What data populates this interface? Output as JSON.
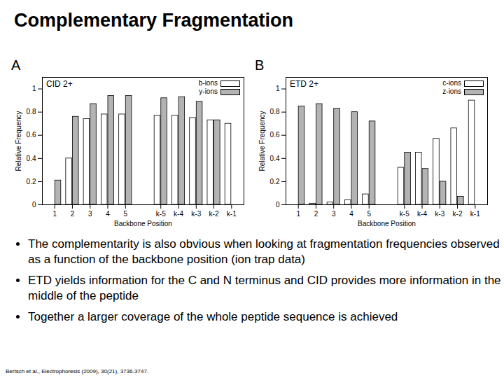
{
  "title": "Complementary Fragmentation",
  "chart_data": [
    {
      "type": "bar",
      "panel": "A",
      "title": "CID 2+",
      "x_label": "Backbone Position",
      "y_label": "Relative Frequency",
      "categories": [
        "1",
        "2",
        "3",
        "4",
        "5",
        null,
        "k-5",
        "k-4",
        "k-3",
        "k-2",
        "k-1"
      ],
      "series": [
        {
          "name": "b-ions",
          "color": "#ffffff",
          "values": [
            null,
            0.4,
            0.74,
            0.78,
            0.78,
            null,
            0.77,
            0.77,
            0.75,
            0.73,
            0.7
          ]
        },
        {
          "name": "y-ions",
          "color": "#b3b3b3",
          "values": [
            0.21,
            0.76,
            0.87,
            0.94,
            0.94,
            null,
            0.92,
            0.93,
            0.89,
            0.73,
            null
          ]
        }
      ],
      "ylim": [
        0,
        1.1
      ],
      "yticks": [
        0,
        0.2,
        0.4,
        0.6,
        0.8,
        1
      ],
      "legend": "top-right"
    },
    {
      "type": "bar",
      "panel": "B",
      "title": "ETD 2+",
      "x_label": "Backbone Position",
      "y_label": "Relative Frequency",
      "categories": [
        "1",
        "2",
        "3",
        "4",
        "5",
        null,
        "k-5",
        "k-4",
        "k-3",
        "k-2",
        "k-1"
      ],
      "series": [
        {
          "name": "c-ions",
          "color": "#ffffff",
          "values": [
            null,
            0.01,
            0.02,
            0.04,
            0.09,
            null,
            0.32,
            0.45,
            0.57,
            0.66,
            0.9
          ]
        },
        {
          "name": "z-ions",
          "color": "#b3b3b3",
          "values": [
            0.85,
            0.87,
            0.83,
            0.8,
            0.72,
            null,
            0.45,
            0.31,
            0.2,
            0.07,
            null
          ]
        }
      ],
      "ylim": [
        0,
        1.1
      ],
      "yticks": [
        0,
        0.2,
        0.4,
        0.6,
        0.8,
        1
      ],
      "legend": "top-right"
    }
  ],
  "bullets": [
    "The complementarity is also obvious when looking at fragmentation frequencies observed as a function of the backbone position (ion trap data)",
    "ETD yields information for the C and N terminus and CID provides more information in the middle of the peptide",
    "Together a larger coverage of the whole peptide sequence is achieved"
  ],
  "citation": "Bertsch et al., Electrophoresis (2009), 30(21), 3736-3747."
}
